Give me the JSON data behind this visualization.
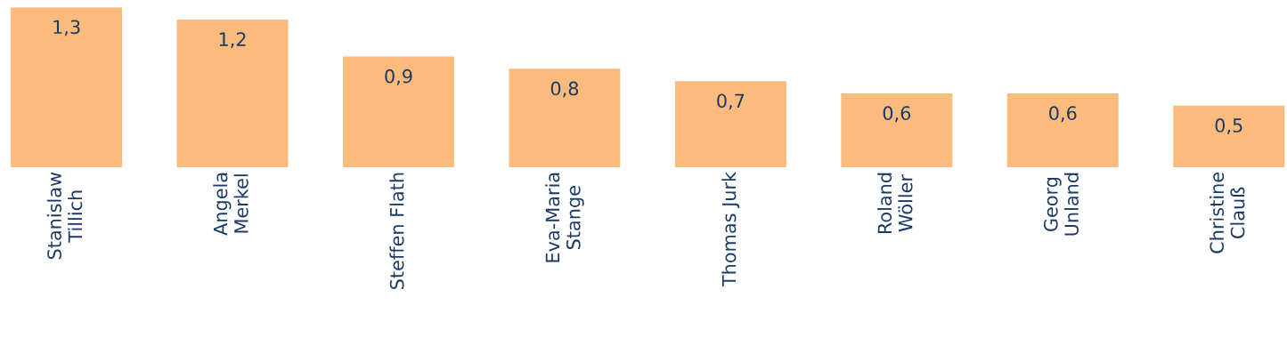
{
  "chart_data": {
    "type": "bar",
    "categories": [
      "Stanislaw\nTillich",
      "Angela\nMerkel",
      "Steffen Flath",
      "Eva-Maria\nStange",
      "Thomas Jurk",
      "Roland\nWöller",
      "Georg\nUnland",
      "Christine\nClauß"
    ],
    "values": [
      1.3,
      1.2,
      0.9,
      0.8,
      0.7,
      0.6,
      0.6,
      0.5
    ],
    "value_labels": [
      "1,3",
      "1,2",
      "0,9",
      "0,8",
      "0,7",
      "0,6",
      "0,6",
      "0,5"
    ],
    "color": "#fbbb7c",
    "grid": false,
    "legend": false
  }
}
